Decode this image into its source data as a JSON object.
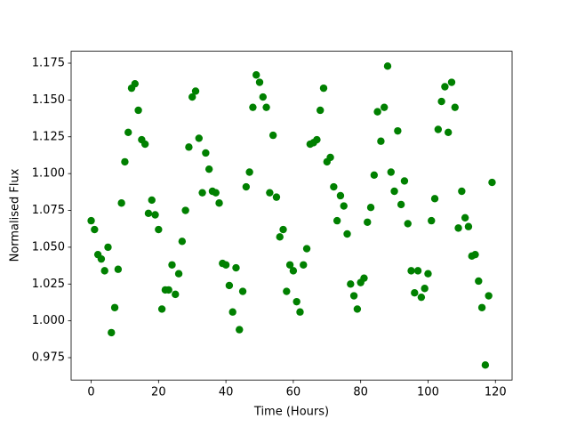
{
  "chart_data": {
    "type": "scatter",
    "x_label": "Time (Hours)",
    "y_label": "Normalised Flux",
    "color": "green",
    "x": [
      0,
      1,
      2,
      3,
      4,
      5,
      6,
      7,
      8,
      9,
      10,
      11,
      12,
      13,
      14,
      15,
      16,
      17,
      18,
      19,
      20,
      21,
      22,
      23,
      24,
      25,
      26,
      27,
      28,
      29,
      30,
      31,
      32,
      33,
      34,
      35,
      36,
      37,
      38,
      39,
      40,
      41,
      42,
      43,
      44,
      45,
      46,
      47,
      48,
      49,
      50,
      51,
      52,
      53,
      54,
      55,
      56,
      57,
      58,
      59,
      60,
      61,
      62,
      63,
      64,
      65,
      66,
      67,
      68,
      69,
      70,
      71,
      72,
      73,
      74,
      75,
      76,
      77,
      78,
      79,
      80,
      81,
      82,
      83,
      84,
      85,
      86,
      87,
      88,
      89,
      90,
      91,
      92,
      93,
      94,
      95,
      96,
      97,
      98,
      99,
      100,
      101,
      102,
      103,
      104,
      105,
      106,
      107,
      108,
      109,
      110,
      111,
      112,
      113,
      114,
      115,
      116,
      117,
      118,
      119
    ],
    "values": [
      1.068,
      1.062,
      1.045,
      1.042,
      1.034,
      1.05,
      0.992,
      1.009,
      1.035,
      1.08,
      1.108,
      1.128,
      1.158,
      1.161,
      1.143,
      1.123,
      1.12,
      1.073,
      1.082,
      1.072,
      1.062,
      1.008,
      1.021,
      1.021,
      1.038,
      1.018,
      1.032,
      1.054,
      1.075,
      1.118,
      1.152,
      1.156,
      1.124,
      1.087,
      1.114,
      1.103,
      1.088,
      1.087,
      1.08,
      1.039,
      1.038,
      1.024,
      1.006,
      1.036,
      0.994,
      1.02,
      1.091,
      1.101,
      1.145,
      1.167,
      1.162,
      1.152,
      1.145,
      1.087,
      1.126,
      1.084,
      1.057,
      1.062,
      1.02,
      1.038,
      1.034,
      1.013,
      1.006,
      1.038,
      1.049,
      1.12,
      1.121,
      1.123,
      1.143,
      1.158,
      1.108,
      1.111,
      1.091,
      1.068,
      1.085,
      1.078,
      1.059,
      1.025,
      1.017,
      1.008,
      1.026,
      1.029,
      1.067,
      1.077,
      1.099,
      1.142,
      1.122,
      1.145,
      1.173,
      1.101,
      1.088,
      1.129,
      1.079,
      1.095,
      1.066,
      1.034,
      1.019,
      1.034,
      1.016,
      1.022,
      1.032,
      1.068,
      1.083,
      1.13,
      1.149,
      1.159,
      1.128,
      1.162,
      1.145,
      1.063,
      1.088,
      1.07,
      1.064,
      1.044,
      1.045,
      1.027,
      1.009,
      0.97,
      1.017,
      1.094
    ],
    "xlim": [
      -5.95,
      124.95
    ],
    "ylim": [
      0.9598,
      1.1831
    ],
    "xticks": [
      0,
      20,
      40,
      60,
      80,
      100,
      120
    ],
    "yticks": [
      0.975,
      {
        "value": 1,
        "label": "1.000"
      },
      1.025,
      {
        "value": 1.05,
        "label": "1.050"
      },
      1.075,
      {
        "value": 1.1,
        "label": "1.100"
      },
      1.125,
      {
        "value": 1.15,
        "label": "1.150"
      },
      1.175
    ],
    "grid": false
  }
}
